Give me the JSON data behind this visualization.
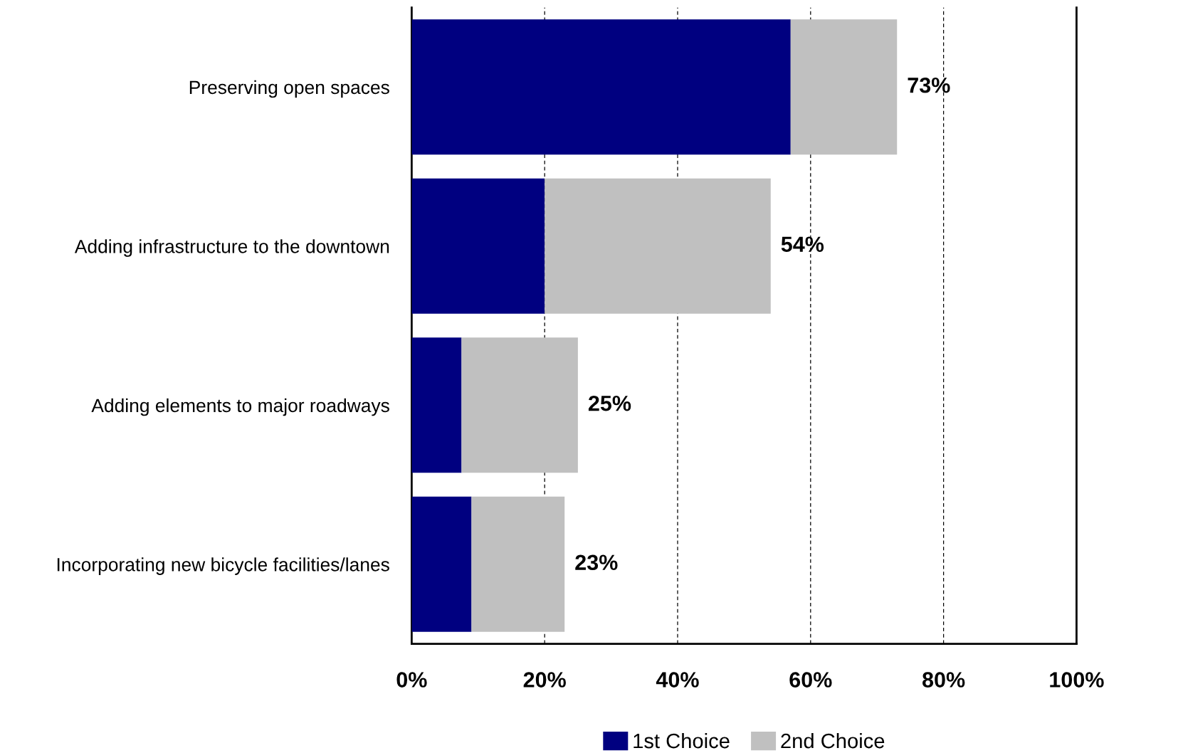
{
  "chart_data": {
    "type": "bar",
    "orientation": "horizontal",
    "stacked": true,
    "categories": [
      "Preserving open spaces",
      "Adding infrastructure to the downtown",
      "Adding elements to major roadways",
      "Incorporating new bicycle facilities/lanes"
    ],
    "series": [
      {
        "name": "1st Choice",
        "color": "#000080",
        "values": [
          57,
          20,
          7.5,
          9
        ]
      },
      {
        "name": "2nd Choice",
        "color": "#c0c0c0",
        "values": [
          16,
          34,
          17.5,
          14
        ]
      }
    ],
    "totals": [
      "73%",
      "54%",
      "25%",
      "23%"
    ],
    "xlim": [
      0,
      100
    ],
    "xticks": [
      {
        "value": 0,
        "label": "0%"
      },
      {
        "value": 20,
        "label": "20%"
      },
      {
        "value": 40,
        "label": "40%"
      },
      {
        "value": 60,
        "label": "60%"
      },
      {
        "value": 80,
        "label": "80%"
      },
      {
        "value": 100,
        "label": "100%"
      }
    ],
    "grid": "x",
    "legend": "bottom"
  }
}
